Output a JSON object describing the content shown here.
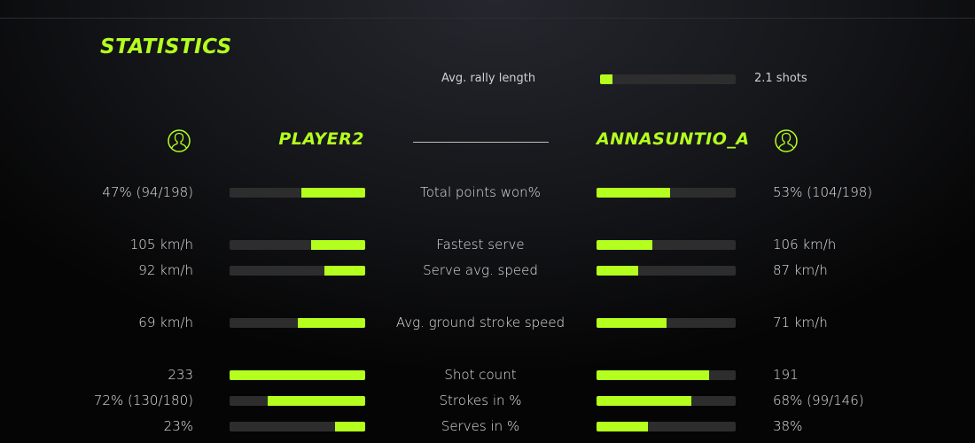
{
  "title": "STATISTICS",
  "accent": "#b4ff1e",
  "rally": {
    "label": "Avg. rally length",
    "value": "2.1 shots",
    "fill": 0.09
  },
  "players": {
    "left": {
      "name": "PLAYER2",
      "icon": "user-icon"
    },
    "right": {
      "name": "ANNASUNTIO_A",
      "icon": "user-icon"
    }
  },
  "rows": [
    {
      "label": "Total points won%",
      "left": "47% (94/198)",
      "right": "53% (104/198)",
      "left_fill": 0.47,
      "right_fill": 0.53
    },
    {
      "label": "Fastest serve",
      "left": "105 km/h",
      "right": "106 km/h",
      "left_fill": 0.4,
      "right_fill": 0.4
    },
    {
      "label": "Serve avg. speed",
      "left": "92 km/h",
      "right": "87 km/h",
      "left_fill": 0.3,
      "right_fill": 0.3
    },
    {
      "label": "Avg. ground stroke speed",
      "left": "69 km/h",
      "right": "71 km/h",
      "left_fill": 0.5,
      "right_fill": 0.5
    },
    {
      "label": "Shot count",
      "left": "233",
      "right": "191",
      "left_fill": 1.0,
      "right_fill": 0.81
    },
    {
      "label": "Strokes in %",
      "left": "72% (130/180)",
      "right": "68% (99/146)",
      "left_fill": 0.72,
      "right_fill": 0.68
    },
    {
      "label": "Serves in %",
      "left": "23%",
      "right": "38%",
      "left_fill": 0.22,
      "right_fill": 0.37
    }
  ]
}
